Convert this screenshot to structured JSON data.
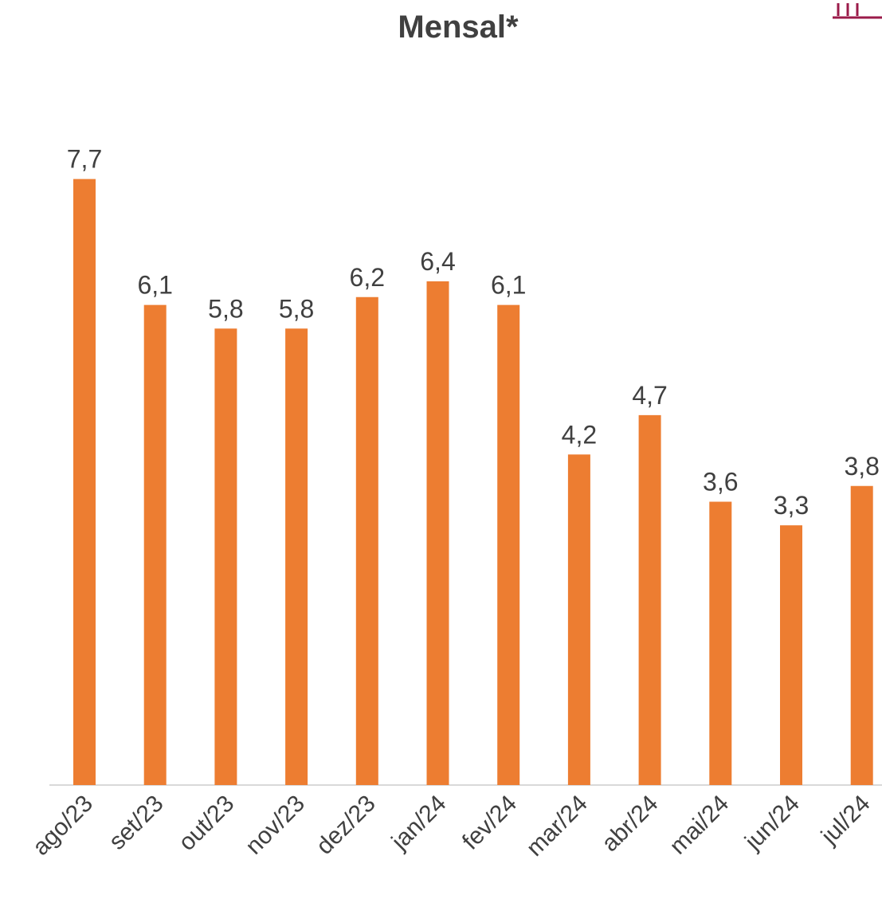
{
  "chart_data": {
    "type": "bar",
    "title": "Mensal*",
    "categories": [
      "ago/23",
      "set/23",
      "out/23",
      "nov/23",
      "dez/23",
      "jan/24",
      "fev/24",
      "mar/24",
      "abr/24",
      "mai/24",
      "jun/24",
      "jul/24"
    ],
    "values": [
      7.7,
      6.1,
      5.8,
      5.8,
      6.2,
      6.4,
      6.1,
      4.2,
      4.7,
      3.6,
      3.3,
      3.8
    ],
    "value_labels": [
      "7,7",
      "6,1",
      "5,8",
      "5,8",
      "6,2",
      "6,4",
      "6,1",
      "4,2",
      "4,7",
      "3,6",
      "3,3",
      "3,8"
    ],
    "color": "#ed7d31",
    "ylim": [
      0,
      8
    ]
  }
}
